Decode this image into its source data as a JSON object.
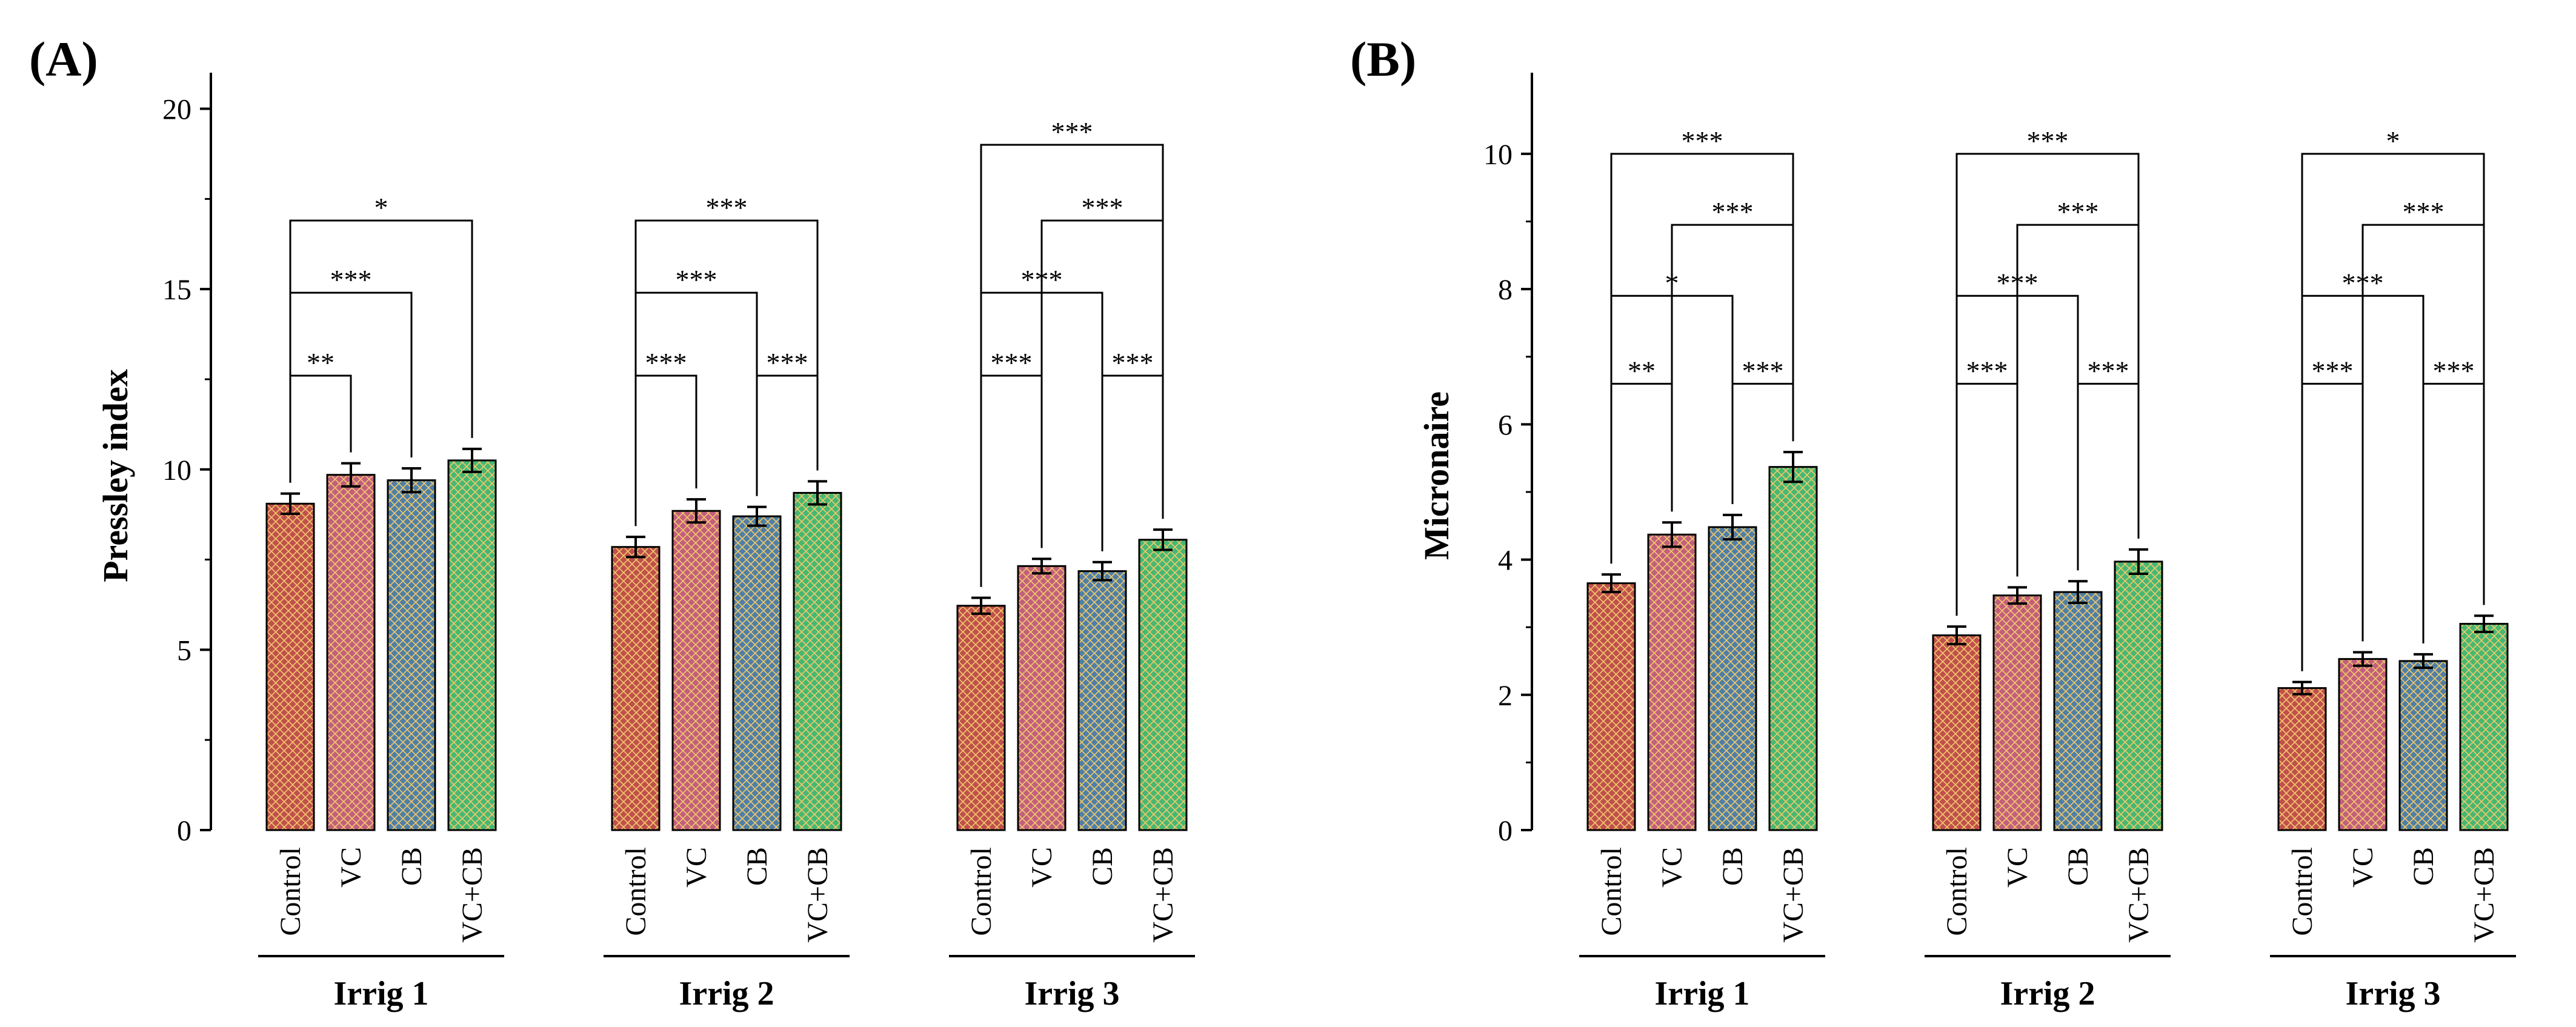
{
  "colors": {
    "Control": "#c0504d",
    "VC": "#c25f7d",
    "CB": "#4f7fa6",
    "VC+CB": "#46b873",
    "hatch": "#f2c96a"
  },
  "chart_data": [
    {
      "type": "bar",
      "panel_label": "(A)",
      "ylabel": "Pressley index",
      "ylim": [
        0,
        21
      ],
      "yticks": [
        0,
        5,
        10,
        15,
        20
      ],
      "treatments": [
        "Control",
        "VC",
        "CB",
        "VC+CB"
      ],
      "groups": [
        "Irrig 1",
        "Irrig 2",
        "Irrig 3"
      ],
      "series": [
        {
          "name": "Control",
          "values": [
            9.05,
            7.85,
            6.22
          ],
          "errors": [
            0.28,
            0.28,
            0.22
          ]
        },
        {
          "name": "VC",
          "values": [
            9.85,
            8.85,
            7.32
          ],
          "errors": [
            0.32,
            0.32,
            0.2
          ]
        },
        {
          "name": "CB",
          "values": [
            9.7,
            8.7,
            7.18
          ],
          "errors": [
            0.33,
            0.26,
            0.25
          ]
        },
        {
          "name": "VC+CB",
          "values": [
            10.25,
            9.35,
            8.05
          ],
          "errors": [
            0.32,
            0.32,
            0.28
          ]
        }
      ],
      "significance": [
        [
          {
            "from": 0,
            "to": 1,
            "label": "**",
            "y": 12.6
          },
          {
            "from": 0,
            "to": 2,
            "label": "***",
            "y": 14.9
          },
          {
            "from": 0,
            "to": 3,
            "label": "*",
            "y": 16.9
          }
        ],
        [
          {
            "from": 0,
            "to": 1,
            "label": "***",
            "y": 12.6
          },
          {
            "from": 2,
            "to": 3,
            "label": "***",
            "y": 12.6
          },
          {
            "from": 0,
            "to": 2,
            "label": "***",
            "y": 14.9
          },
          {
            "from": 0,
            "to": 3,
            "label": "***",
            "y": 16.9
          }
        ],
        [
          {
            "from": 0,
            "to": 1,
            "label": "***",
            "y": 12.6
          },
          {
            "from": 2,
            "to": 3,
            "label": "***",
            "y": 12.6
          },
          {
            "from": 0,
            "to": 2,
            "label": "***",
            "y": 14.9
          },
          {
            "from": 1,
            "to": 3,
            "label": "***",
            "y": 16.9
          },
          {
            "from": 0,
            "to": 3,
            "label": "***",
            "y": 19.0
          }
        ]
      ]
    },
    {
      "type": "bar",
      "panel_label": "(B)",
      "ylabel": "Micronaire",
      "ylim": [
        0,
        11.2
      ],
      "yticks": [
        0,
        2,
        4,
        6,
        8,
        10
      ],
      "treatments": [
        "Control",
        "VC",
        "CB",
        "VC+CB"
      ],
      "groups": [
        "Irrig 1",
        "Irrig 2",
        "Irrig 3"
      ],
      "series": [
        {
          "name": "Control",
          "values": [
            3.65,
            2.88,
            2.1
          ],
          "errors": [
            0.13,
            0.13,
            0.09
          ]
        },
        {
          "name": "VC",
          "values": [
            4.37,
            3.47,
            2.53
          ],
          "errors": [
            0.18,
            0.12,
            0.1
          ]
        },
        {
          "name": "CB",
          "values": [
            4.48,
            3.52,
            2.5
          ],
          "errors": [
            0.18,
            0.16,
            0.1
          ]
        },
        {
          "name": "VC+CB",
          "values": [
            5.37,
            3.97,
            3.05
          ],
          "errors": [
            0.22,
            0.18,
            0.12
          ]
        }
      ],
      "significance": [
        [
          {
            "from": 0,
            "to": 1,
            "label": "**",
            "y": 6.6
          },
          {
            "from": 2,
            "to": 3,
            "label": "***",
            "y": 6.6
          },
          {
            "from": 0,
            "to": 2,
            "label": "*",
            "y": 7.9
          },
          {
            "from": 1,
            "to": 3,
            "label": "***",
            "y": 8.95
          },
          {
            "from": 0,
            "to": 3,
            "label": "***",
            "y": 10.0
          }
        ],
        [
          {
            "from": 0,
            "to": 1,
            "label": "***",
            "y": 6.6
          },
          {
            "from": 2,
            "to": 3,
            "label": "***",
            "y": 6.6
          },
          {
            "from": 0,
            "to": 2,
            "label": "***",
            "y": 7.9
          },
          {
            "from": 1,
            "to": 3,
            "label": "***",
            "y": 8.95
          },
          {
            "from": 0,
            "to": 3,
            "label": "***",
            "y": 10.0
          }
        ],
        [
          {
            "from": 0,
            "to": 1,
            "label": "***",
            "y": 6.6
          },
          {
            "from": 2,
            "to": 3,
            "label": "***",
            "y": 6.6
          },
          {
            "from": 0,
            "to": 2,
            "label": "***",
            "y": 7.9
          },
          {
            "from": 1,
            "to": 3,
            "label": "***",
            "y": 8.95
          },
          {
            "from": 0,
            "to": 3,
            "label": "*",
            "y": 10.0
          }
        ]
      ]
    }
  ]
}
